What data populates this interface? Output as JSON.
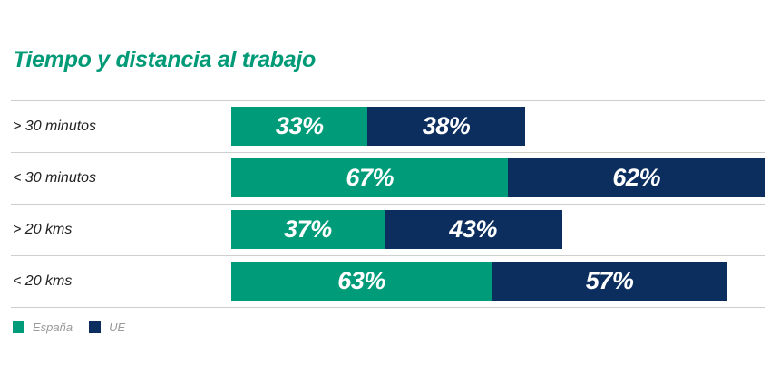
{
  "chart_data": {
    "type": "bar",
    "orientation": "horizontal",
    "stacked": true,
    "title": "Tiempo y distancia al trabajo",
    "categories": [
      "> 30 minutos",
      "< 30 minutos",
      "> 20 kms",
      "< 20 kms"
    ],
    "series": [
      {
        "name": "España",
        "values": [
          33,
          67,
          37,
          63
        ],
        "color": "#009b78",
        "labels": [
          "33%",
          "67%",
          "37%",
          "63%"
        ]
      },
      {
        "name": "UE",
        "values": [
          38,
          62,
          43,
          57
        ],
        "color": "#0b2e5f",
        "labels": [
          "38%",
          "62%",
          "43%",
          "57%"
        ]
      }
    ],
    "xlim": [
      0,
      129
    ],
    "legend": "bottom-left",
    "grid": false
  }
}
